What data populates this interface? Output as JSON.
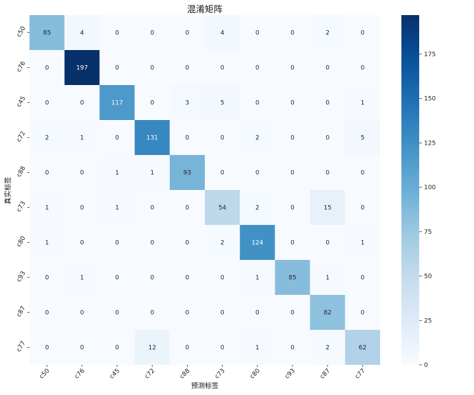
{
  "chart_data": {
    "type": "heatmap",
    "title": "混淆矩阵",
    "xlabel": "预测标签",
    "ylabel": "真实标签",
    "x_categories": [
      "c50",
      "c76",
      "c45",
      "c72",
      "c88",
      "c73",
      "c80",
      "c93",
      "c87",
      "c77"
    ],
    "y_categories": [
      "c50",
      "c76",
      "c45",
      "c72",
      "c88",
      "c73",
      "c80",
      "c93",
      "c87",
      "c77"
    ],
    "values": [
      [
        85,
        4,
        0,
        0,
        0,
        4,
        0,
        0,
        2,
        0
      ],
      [
        0,
        197,
        0,
        0,
        0,
        0,
        0,
        0,
        0,
        0
      ],
      [
        0,
        0,
        117,
        0,
        3,
        5,
        0,
        0,
        0,
        1
      ],
      [
        2,
        1,
        0,
        131,
        0,
        0,
        2,
        0,
        0,
        5
      ],
      [
        0,
        0,
        1,
        1,
        93,
        0,
        0,
        0,
        0,
        0
      ],
      [
        1,
        0,
        1,
        0,
        0,
        54,
        2,
        0,
        15,
        0
      ],
      [
        1,
        0,
        0,
        0,
        0,
        2,
        124,
        0,
        0,
        1
      ],
      [
        0,
        1,
        0,
        0,
        0,
        0,
        1,
        85,
        1,
        0
      ],
      [
        0,
        0,
        0,
        0,
        0,
        0,
        0,
        0,
        82,
        0
      ],
      [
        0,
        0,
        0,
        12,
        0,
        0,
        1,
        0,
        2,
        62
      ]
    ],
    "colorbar": {
      "min": 0,
      "max": 197,
      "ticks": [
        0,
        25,
        50,
        75,
        100,
        125,
        150,
        175
      ],
      "colormap": "Blues",
      "low_color": "#f7fbff",
      "high_color": "#08306b"
    },
    "annotations": true,
    "grid": false
  }
}
